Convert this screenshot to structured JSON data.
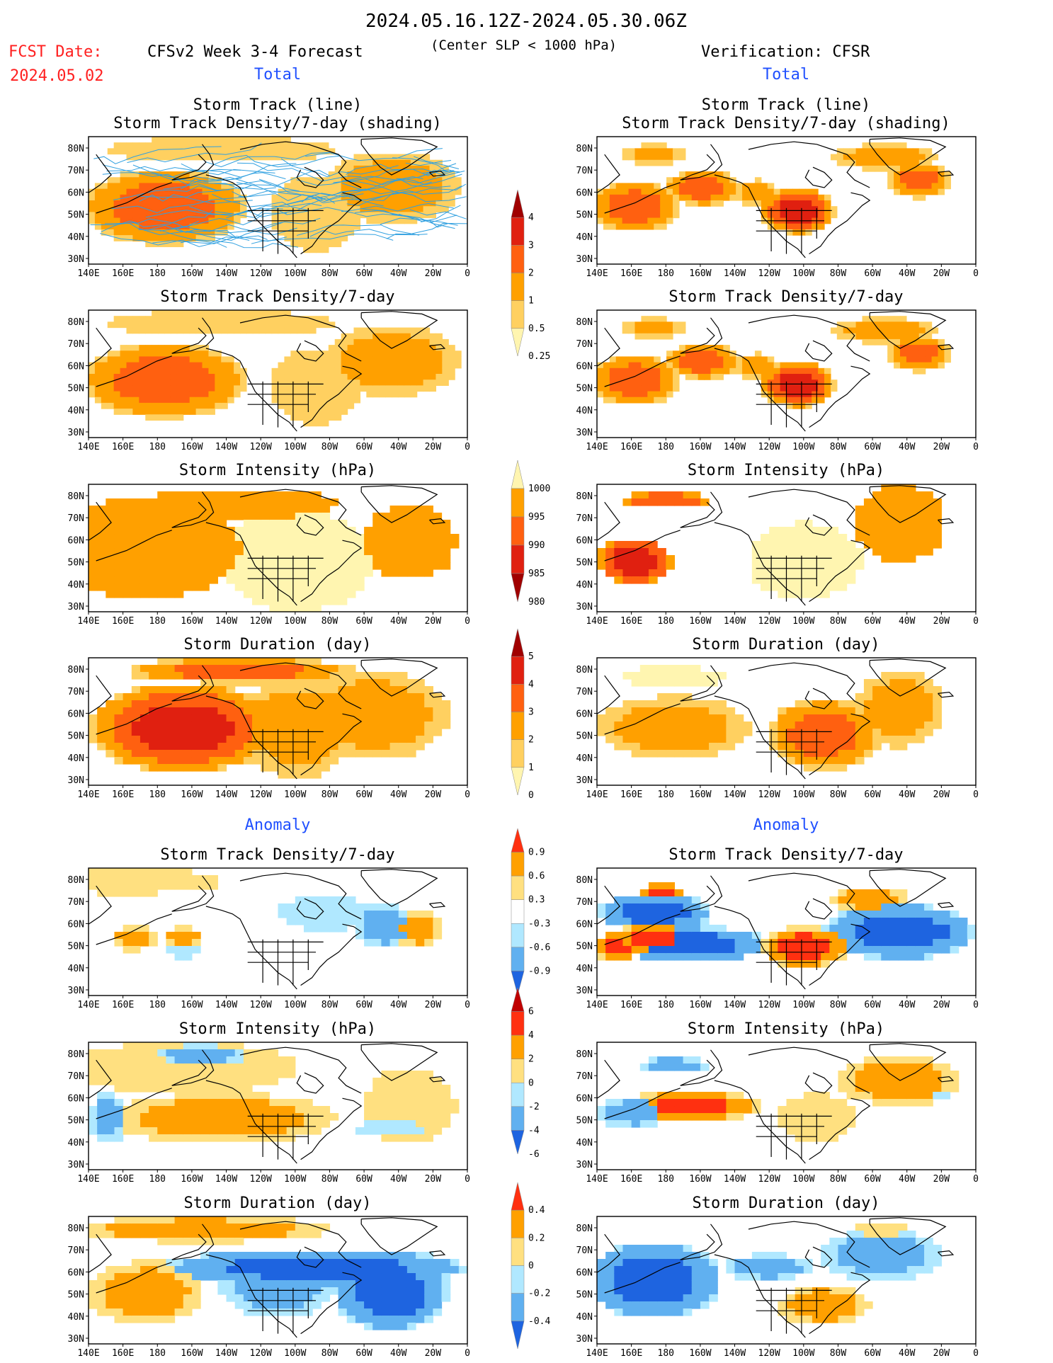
{
  "header": {
    "date_range": "2024.05.16.12Z-2024.05.30.06Z",
    "fcst_label": "FCST Date:",
    "fcst_date": "2024.05.02",
    "forecast_title": "CFSv2 Week 3-4 Forecast",
    "criterion": "(Center SLP < 1000 hPa)",
    "verification_title": "Verification: CFSR",
    "total_label": "Total",
    "anomaly_label": "Anomaly"
  },
  "panel_titles": {
    "track_line": "Storm Track (line)",
    "track_shading": "Storm Track Density/7-day (shading)",
    "density": "Storm Track Density/7-day",
    "intensity": "Storm Intensity (hPa)",
    "duration": "Storm Duration (day)"
  },
  "axes": {
    "lat_labels": [
      "80N",
      "70N",
      "60N",
      "50N",
      "40N",
      "30N"
    ],
    "lon_labels": [
      "140E",
      "160E",
      "180",
      "160W",
      "140W",
      "120W",
      "100W",
      "80W",
      "60W",
      "40W",
      "20W",
      "0"
    ]
  },
  "colors": {
    "red_text": "#ff2020",
    "blue_text": "#2050ff",
    "track_line": "#30a0e0"
  },
  "chart_data": [
    {
      "type": "heatmap",
      "panel": "forecast-total-track",
      "cmap": "dens"
    },
    {
      "type": "heatmap",
      "panel": "verification-total-track",
      "cmap": "dens"
    },
    {
      "type": "heatmap",
      "panel": "forecast-total-density",
      "cmap": "dens"
    },
    {
      "type": "heatmap",
      "panel": "verification-total-density",
      "cmap": "dens"
    },
    {
      "type": "heatmap",
      "panel": "forecast-total-intensity",
      "cmap": "int"
    },
    {
      "type": "heatmap",
      "panel": "verification-total-intensity",
      "cmap": "int"
    },
    {
      "type": "heatmap",
      "panel": "forecast-total-duration",
      "cmap": "dur"
    },
    {
      "type": "heatmap",
      "panel": "verification-total-duration",
      "cmap": "dur"
    },
    {
      "type": "heatmap",
      "panel": "forecast-anomaly-density",
      "cmap": "adens"
    },
    {
      "type": "heatmap",
      "panel": "verification-anomaly-density",
      "cmap": "adens"
    },
    {
      "type": "heatmap",
      "panel": "forecast-anomaly-intensity",
      "cmap": "aint"
    },
    {
      "type": "heatmap",
      "panel": "verification-anomaly-intensity",
      "cmap": "aint"
    },
    {
      "type": "heatmap",
      "panel": "forecast-anomaly-duration",
      "cmap": "adur"
    },
    {
      "type": "heatmap",
      "panel": "verification-anomaly-duration",
      "cmap": "adur"
    }
  ],
  "colorbars": {
    "dens": {
      "labels": [
        "4",
        "3",
        "2",
        "1",
        "0.5",
        "0.25"
      ],
      "colors": [
        "#a00000",
        "#e02010",
        "#ff6010",
        "#ffa000",
        "#ffd060",
        "#fff5b0"
      ]
    },
    "int": {
      "labels": [
        "1000",
        "995",
        "990",
        "985",
        "980"
      ],
      "colors": [
        "#fff5b0",
        "#ffa000",
        "#ff6010",
        "#e02010",
        "#a00000"
      ]
    },
    "dur": {
      "labels": [
        "5",
        "4",
        "3",
        "2",
        "1",
        "0"
      ],
      "colors": [
        "#a00000",
        "#e02010",
        "#ff6010",
        "#ffa000",
        "#ffd060",
        "#fff5b0"
      ]
    },
    "adens": {
      "labels": [
        "0.9",
        "0.6",
        "0.3",
        "-0.3",
        "-0.6",
        "-0.9"
      ],
      "colors": [
        "#ff3010",
        "#ffa000",
        "#ffe080",
        "#ffffff",
        "#b0e8ff",
        "#60b0f0",
        "#1e64e0"
      ]
    },
    "aint": {
      "labels": [
        "6",
        "4",
        "2",
        "0",
        "-2",
        "-4",
        "-6"
      ],
      "colors": [
        "#c00000",
        "#ff3010",
        "#ffa000",
        "#ffe080",
        "#b0e8ff",
        "#60b0f0",
        "#1e64e0"
      ]
    },
    "adur": {
      "labels": [
        "0.4",
        "0.2",
        "0",
        "-0.2",
        "-0.4"
      ],
      "colors": [
        "#ff3010",
        "#ffa000",
        "#ffe080",
        "#b0e8ff",
        "#60b0f0",
        "#1e64e0"
      ]
    }
  }
}
